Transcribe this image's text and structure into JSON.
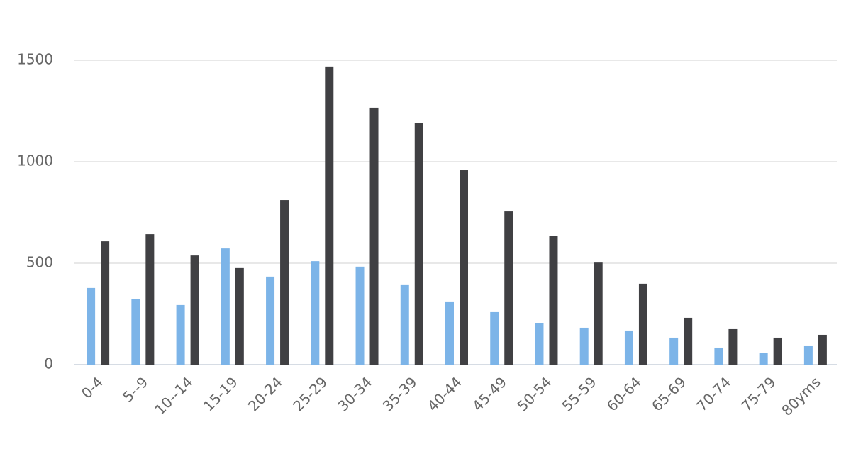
{
  "chart_data": {
    "type": "bar",
    "categories": [
      "0-4",
      "5--9",
      "10--14",
      "15-19",
      "20-24",
      "25-29",
      "30-34",
      "35-39",
      "40-44",
      "45-49",
      "50-54",
      "55-59",
      "60-64",
      "65-69",
      "70-74",
      "75-79",
      "80yms"
    ],
    "series": [
      {
        "color": "#7cb4e8",
        "values": [
          378,
          322,
          294,
          573,
          434,
          510,
          483,
          392,
          308,
          259,
          203,
          182,
          168,
          133,
          84,
          56,
          91
        ]
      },
      {
        "color": "#404043",
        "values": [
          608,
          643,
          538,
          476,
          811,
          1469,
          1266,
          1189,
          958,
          755,
          636,
          503,
          399,
          231,
          175,
          133,
          147
        ]
      }
    ],
    "ylim": [
      0,
      1500
    ],
    "yticks": [
      0,
      500,
      1000,
      1500
    ],
    "grid": true
  }
}
